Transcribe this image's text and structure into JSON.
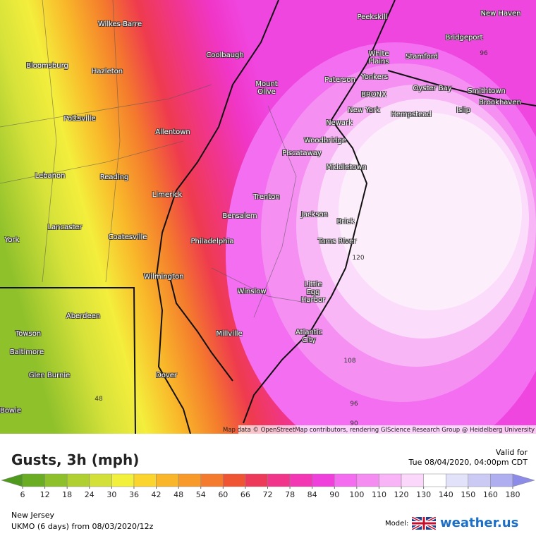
{
  "map": {
    "cities": [
      "New Haven",
      "Peekskill",
      "Wilkes-Barre",
      "Bridgeport",
      "Coolbaugh",
      "White Plains",
      "Stamford",
      "Bloomsburg",
      "Hazleton",
      "Yonkers",
      "Paterson",
      "Mount Olive",
      "Oyster Bay",
      "Smithtown",
      "BRONX",
      "Brookhaven",
      "Islip",
      "New York",
      "Hempstead",
      "Pottsville",
      "Newark",
      "Allentown",
      "Woodbridge",
      "Piscataway",
      "Middletown",
      "Lebanon",
      "Reading",
      "Limerick",
      "Trenton",
      "Bensalem",
      "Jackson",
      "Brick",
      "Lancaster",
      "Coatesville",
      "Toms River",
      "York",
      "Philadelphia",
      "Wilmington",
      "Little Egg Harbor",
      "Winslow",
      "Aberdeen",
      "Towson",
      "Millville",
      "Atlantic City",
      "Baltimore",
      "Glen Burnie",
      "Dover",
      "Bowie"
    ],
    "contour_labels": [
      96,
      120,
      108,
      48,
      96,
      90
    ],
    "attribution": "Map data © OpenStreetMap contributors, rendering GIScience Research Group @ Heidelberg University"
  },
  "footer": {
    "title": "Gusts, 3h (mph)",
    "valid_label": "Valid for",
    "valid_time": "Tue 08/04/2020, 04:00pm CDT",
    "region": "New Jersey",
    "model_run": "UKMO (6 days) from 08/03/2020/12z",
    "model_label": "Model:",
    "brand": "weather.us"
  },
  "legend": {
    "ticks": [
      6,
      12,
      18,
      24,
      30,
      36,
      42,
      48,
      54,
      60,
      66,
      72,
      78,
      84,
      90,
      100,
      110,
      120,
      130,
      140,
      150,
      160,
      180
    ],
    "colors": [
      "#4f9a1c",
      "#6aad23",
      "#8dc02a",
      "#b0d032",
      "#d4e03a",
      "#f3f03c",
      "#fbd42e",
      "#f9b62a",
      "#f79a2a",
      "#f47a2d",
      "#f05533",
      "#ee3a5a",
      "#f0358a",
      "#f236b4",
      "#f040dc",
      "#f46cf0",
      "#f58cf2",
      "#f8b4f6",
      "#fbd8fb",
      "#ffffff",
      "#e2e2fa",
      "#cacaf5",
      "#aeaef0",
      "#8c8ce8"
    ]
  }
}
